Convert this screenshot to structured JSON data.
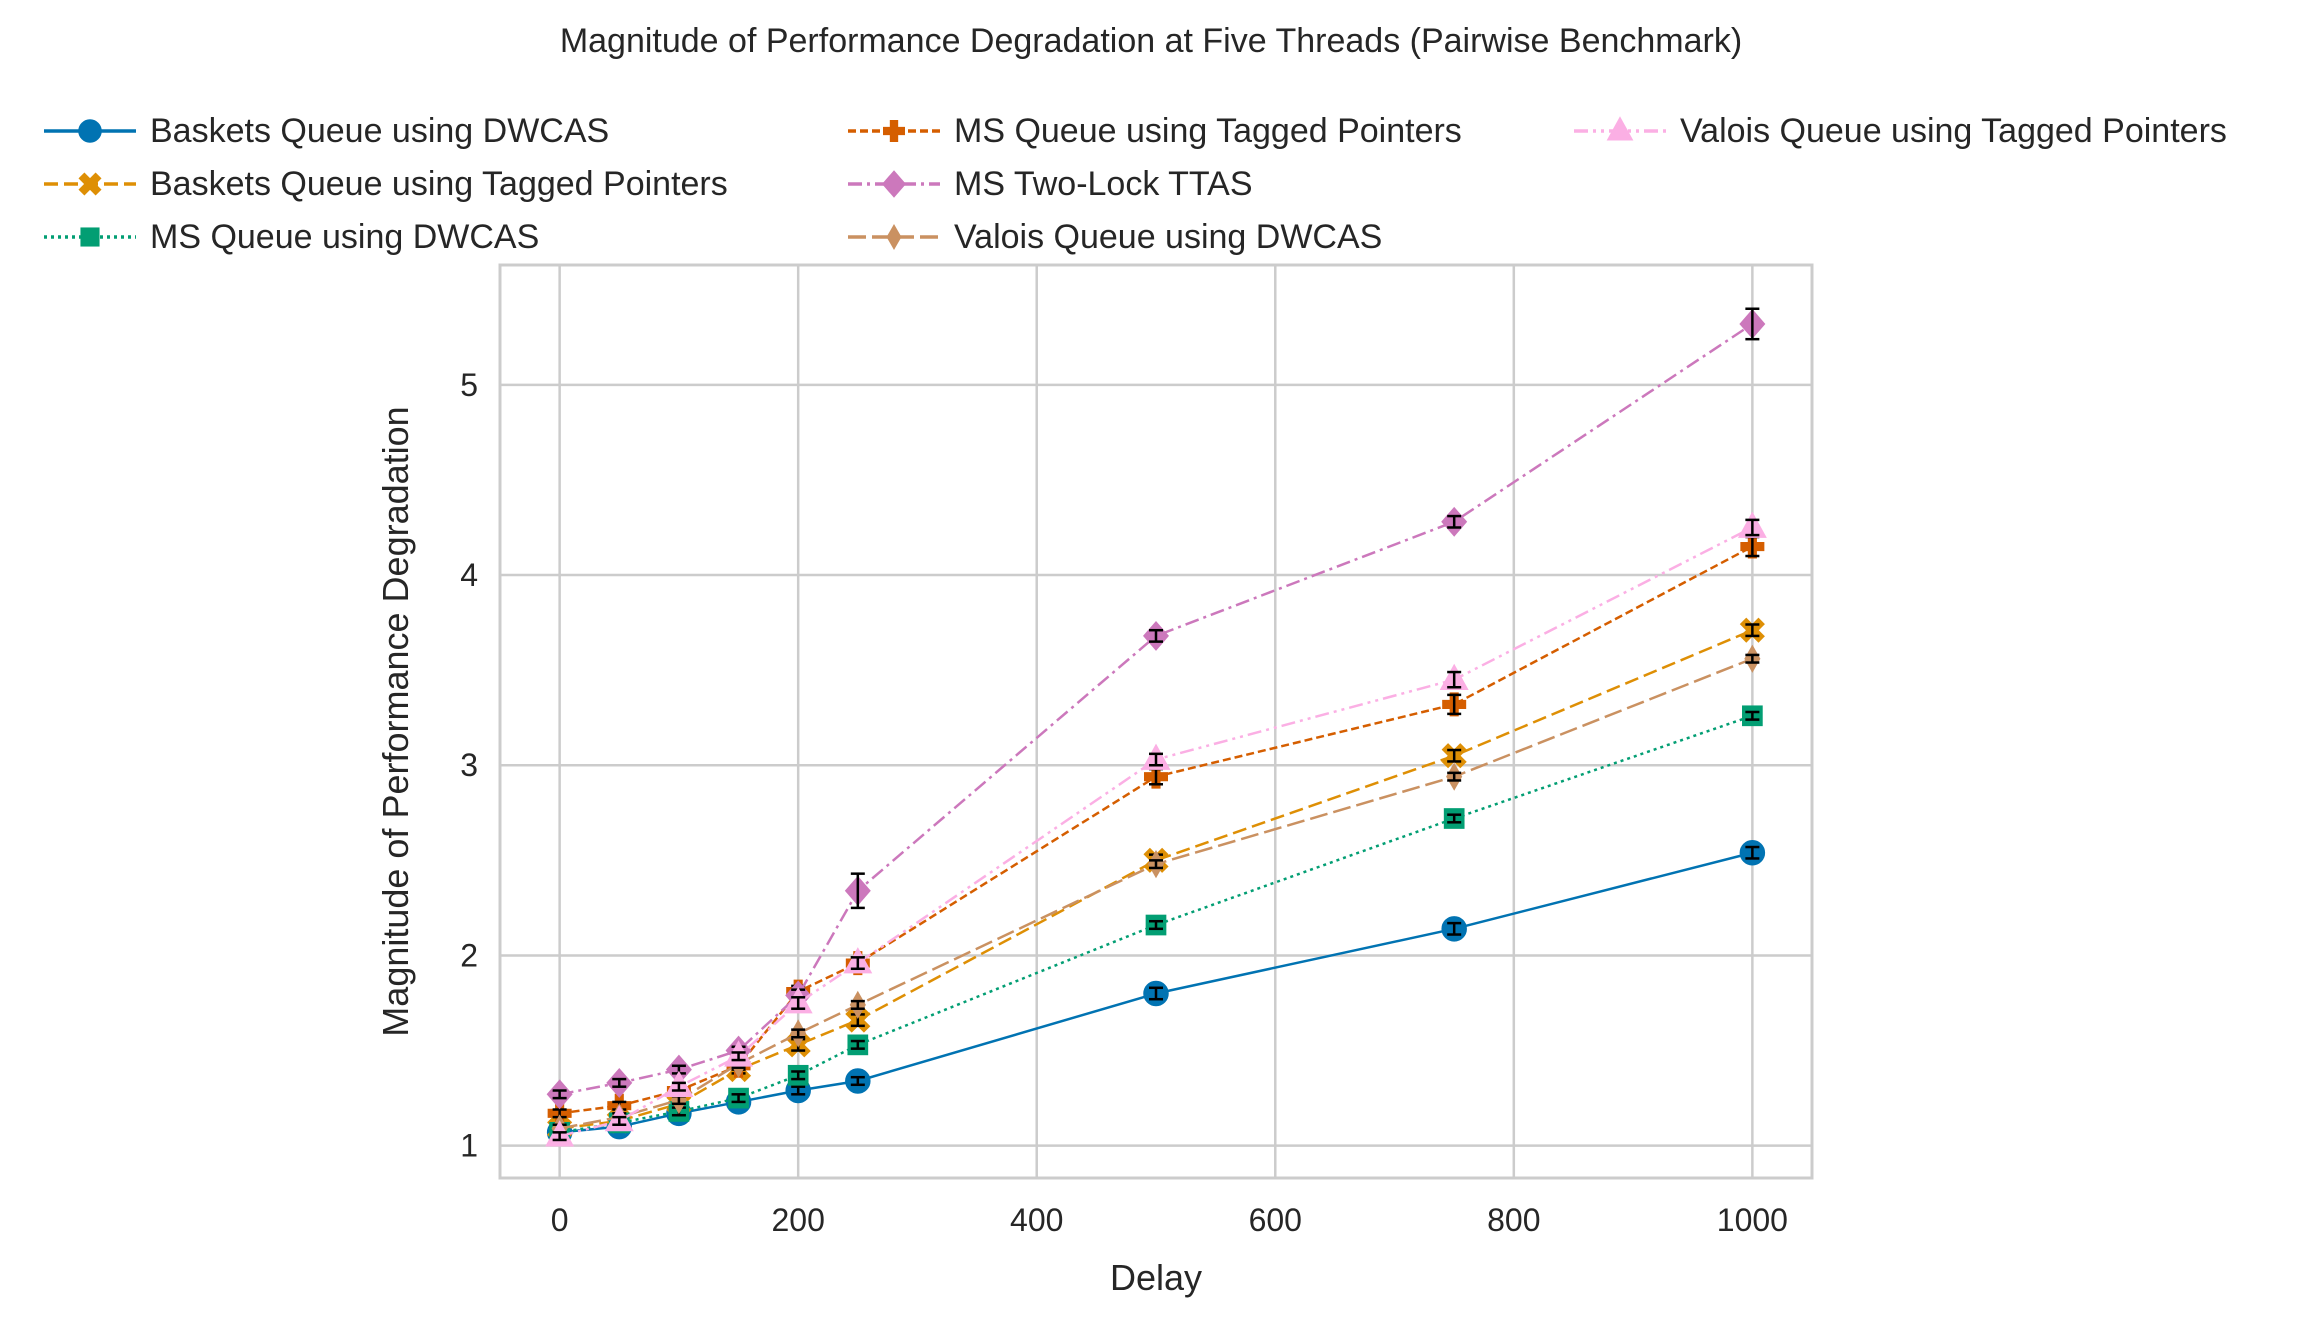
{
  "chart_data": {
    "type": "line",
    "title": "Magnitude of Performance Degradation at Five Threads (Pairwise Benchmark)",
    "xlabel": "Delay",
    "ylabel": "Magnitude of Performance Degradation",
    "xlim": [
      -50,
      1050
    ],
    "ylim": [
      0.83,
      5.63
    ],
    "xticks": [
      0,
      200,
      400,
      600,
      800,
      1000
    ],
    "yticks": [
      1,
      2,
      3,
      4,
      5
    ],
    "grid": true,
    "legend_position": "top",
    "x": [
      0,
      50,
      100,
      150,
      200,
      250,
      500,
      750,
      1000
    ],
    "series": [
      {
        "name": "Baskets Queue using DWCAS",
        "color": "#0173b2",
        "marker": "circle",
        "dash": "solid",
        "values": [
          1.07,
          1.1,
          1.17,
          1.23,
          1.29,
          1.34,
          1.8,
          2.14,
          2.54
        ],
        "errors": [
          0.02,
          0.02,
          0.02,
          0.02,
          0.02,
          0.02,
          0.03,
          0.03,
          0.03
        ]
      },
      {
        "name": "Baskets Queue using Tagged Pointers",
        "color": "#de8f05",
        "marker": "x",
        "dash": "dashed",
        "values": [
          1.09,
          1.13,
          1.22,
          1.4,
          1.53,
          1.66,
          2.5,
          3.05,
          3.71
        ],
        "errors": [
          0.02,
          0.02,
          0.02,
          0.02,
          0.03,
          0.03,
          0.03,
          0.03,
          0.03
        ]
      },
      {
        "name": "MS Queue using DWCAS",
        "color": "#029e73",
        "marker": "square",
        "dash": "dotted",
        "values": [
          1.07,
          1.12,
          1.18,
          1.25,
          1.37,
          1.53,
          2.16,
          2.72,
          3.26
        ],
        "errors": [
          0.02,
          0.02,
          0.02,
          0.02,
          0.02,
          0.02,
          0.02,
          0.02,
          0.02
        ]
      },
      {
        "name": "MS Queue using Tagged Pointers",
        "color": "#d55e00",
        "marker": "plus",
        "dash": "densedash",
        "values": [
          1.17,
          1.21,
          1.29,
          1.42,
          1.81,
          1.96,
          2.94,
          3.32,
          4.15
        ],
        "errors": [
          0.02,
          0.02,
          0.02,
          0.02,
          0.03,
          0.03,
          0.04,
          0.05,
          0.05
        ]
      },
      {
        "name": "MS Two-Lock TTAS",
        "color": "#cc78bc",
        "marker": "diamond",
        "dash": "dashdot",
        "values": [
          1.27,
          1.33,
          1.4,
          1.5,
          1.79,
          2.34,
          3.68,
          4.28,
          5.32
        ],
        "errors": [
          0.02,
          0.02,
          0.02,
          0.02,
          0.03,
          0.09,
          0.03,
          0.03,
          0.08
        ]
      },
      {
        "name": "Valois Queue using DWCAS",
        "color": "#ca9161",
        "marker": "thin_diamond",
        "dash": "longdash",
        "values": [
          1.09,
          1.15,
          1.24,
          1.43,
          1.59,
          1.74,
          2.48,
          2.94,
          3.56
        ],
        "errors": [
          0.02,
          0.02,
          0.02,
          0.02,
          0.02,
          0.02,
          0.02,
          0.02,
          0.02
        ]
      },
      {
        "name": "Valois Queue using Tagged Pointers",
        "color": "#fbafe4",
        "marker": "triangle",
        "dash": "dashdotdot",
        "values": [
          1.05,
          1.13,
          1.31,
          1.47,
          1.75,
          1.96,
          3.03,
          3.45,
          4.25
        ],
        "errors": [
          0.02,
          0.02,
          0.02,
          0.02,
          0.03,
          0.03,
          0.03,
          0.04,
          0.04
        ]
      }
    ]
  }
}
